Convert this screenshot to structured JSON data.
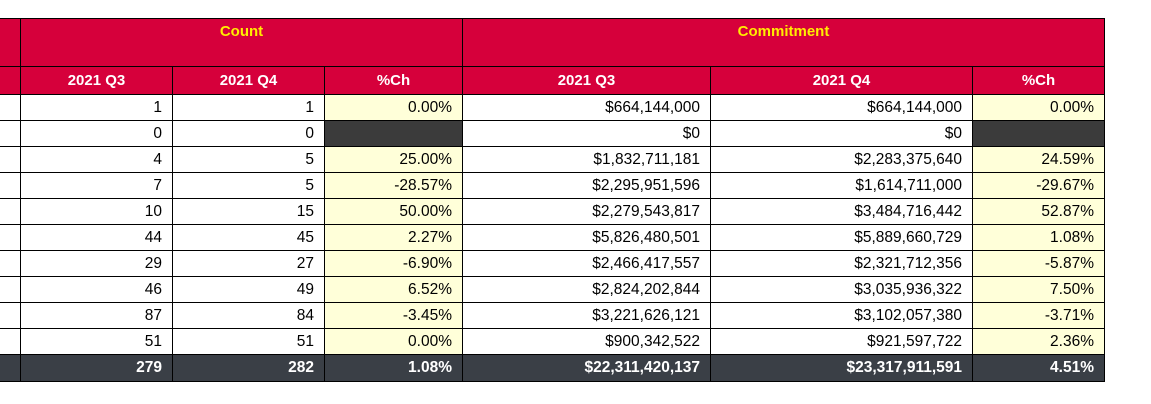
{
  "header": {
    "count_label": "Count",
    "commitment_label": "Commitment",
    "columns": [
      "2021 Q3",
      "2021 Q4",
      "%Ch",
      "2021 Q3",
      "2021 Q4",
      "%Ch"
    ]
  },
  "rows": [
    [
      "1",
      "1",
      "0.00%",
      "$664,144,000",
      "$664,144,000",
      "0.00%"
    ],
    [
      "0",
      "0",
      "",
      "$0",
      "$0",
      ""
    ],
    [
      "4",
      "5",
      "25.00%",
      "$1,832,711,181",
      "$2,283,375,640",
      "24.59%"
    ],
    [
      "7",
      "5",
      "-28.57%",
      "$2,295,951,596",
      "$1,614,711,000",
      "-29.67%"
    ],
    [
      "10",
      "15",
      "50.00%",
      "$2,279,543,817",
      "$3,484,716,442",
      "52.87%"
    ],
    [
      "44",
      "45",
      "2.27%",
      "$5,826,480,501",
      "$5,889,660,729",
      "1.08%"
    ],
    [
      "29",
      "27",
      "-6.90%",
      "$2,466,417,557",
      "$2,321,712,356",
      "-5.87%"
    ],
    [
      "46",
      "49",
      "6.52%",
      "$2,824,202,844",
      "$3,035,936,322",
      "7.50%"
    ],
    [
      "87",
      "84",
      "-3.45%",
      "$3,221,626,121",
      "$3,102,057,380",
      "-3.71%"
    ],
    [
      "51",
      "51",
      "0.00%",
      "$900,342,522",
      "$921,597,722",
      "2.36%"
    ]
  ],
  "totals": [
    "279",
    "282",
    "1.08%",
    "$22,311,420,137",
    "$23,317,911,591",
    "4.51%"
  ],
  "colors": {
    "header_bg": "#d6003b",
    "header_title": "#ffed00",
    "pct_bg": "#ffffd9",
    "total_bg": "#3a3f46"
  }
}
